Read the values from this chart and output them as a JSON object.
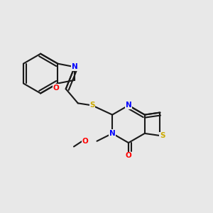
{
  "background_color": "#e8e8e8",
  "bond_color": "#1a1a1a",
  "atom_colors": {
    "N": "#0000ff",
    "O": "#ff0000",
    "S": "#ccaa00"
  },
  "figsize": [
    3.0,
    3.0
  ],
  "dpi": 100
}
